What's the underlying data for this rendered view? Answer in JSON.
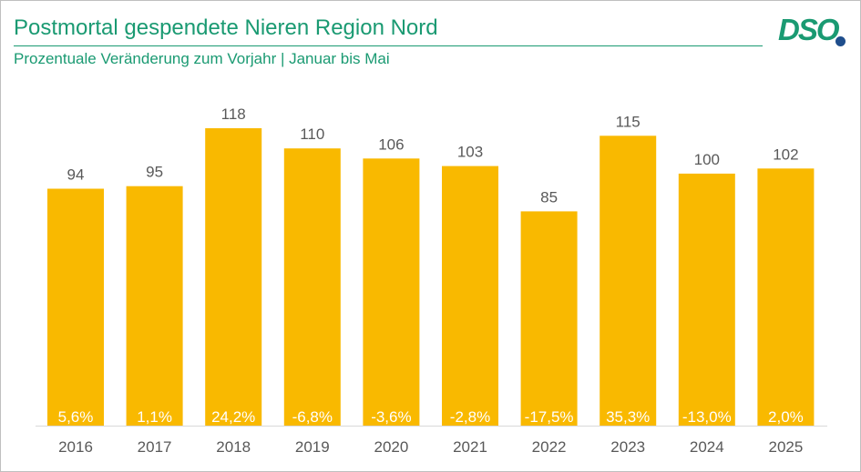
{
  "header": {
    "title": "Postmortal gespendete Nieren Region Nord",
    "subtitle": "Prozentuale Veränderung zum Vorjahr | Januar bis Mai",
    "logo_text": "DSO"
  },
  "colors": {
    "bar": "#f9b900",
    "accent": "#1a9a72",
    "logo_dot": "#1f4e8c",
    "axis": "#d9d9d9",
    "text": "#595959"
  },
  "chart_data": {
    "type": "bar",
    "categories": [
      "2016",
      "2017",
      "2018",
      "2019",
      "2020",
      "2021",
      "2022",
      "2023",
      "2024",
      "2025"
    ],
    "values": [
      94,
      95,
      118,
      110,
      106,
      103,
      85,
      115,
      100,
      102
    ],
    "change_labels": [
      "5,6%",
      "1,1%",
      "24,2%",
      "-6,8%",
      "-3,6%",
      "-2,8%",
      "-17,5%",
      "35,3%",
      "-13,0%",
      "2,0%"
    ],
    "title": "Postmortal gespendete Nieren Region Nord",
    "subtitle": "Prozentuale Veränderung zum Vorjahr | Januar bis Mai",
    "xlabel": "",
    "ylabel": "",
    "ylim": [
      0,
      125
    ],
    "grid": false,
    "legend": "none"
  }
}
